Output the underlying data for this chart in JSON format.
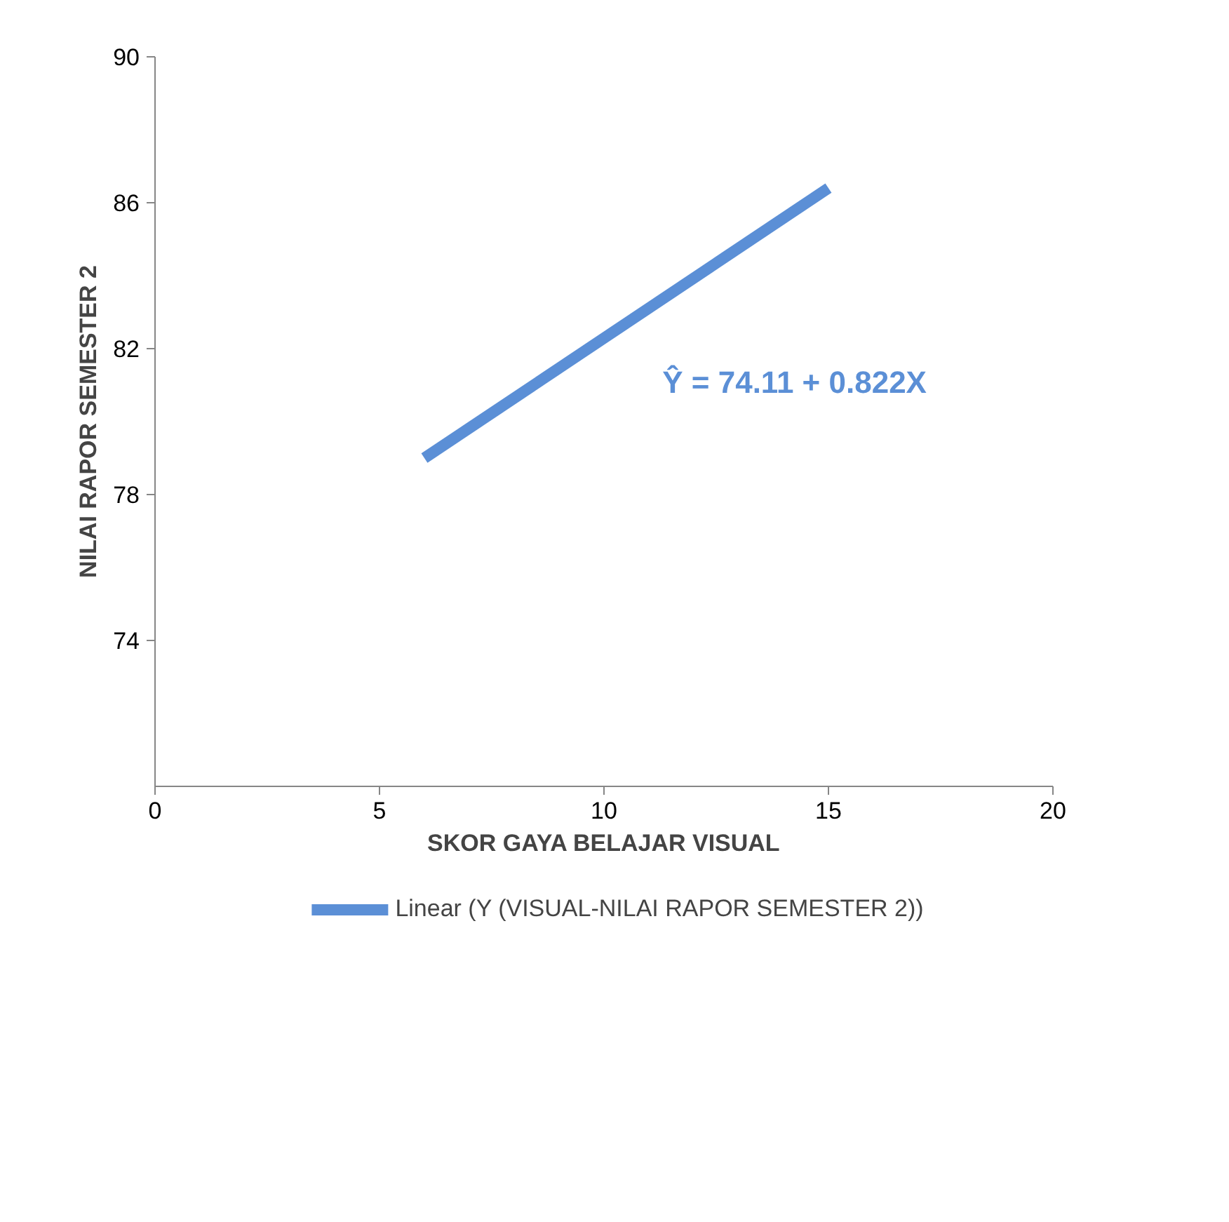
{
  "chart_data": {
    "type": "line",
    "xlabel": "SKOR GAYA BELAJAR VISUAL",
    "ylabel": "NILAI RAPOR SEMESTER 2",
    "series": [
      {
        "name": "Linear (Y (VISUAL-NILAI RAPOR SEMESTER 2))",
        "color": "#5b8fd6",
        "x": [
          6,
          15
        ],
        "values": [
          79.0,
          86.4
        ]
      }
    ],
    "xlim": [
      0,
      20
    ],
    "xticks": [
      0,
      5,
      10,
      15,
      20
    ],
    "ylim": [
      70,
      90
    ],
    "yticks": [
      74,
      78,
      82,
      86,
      90
    ],
    "annotations": [
      "Ŷ = 74.11 + 0.822X"
    ],
    "grid": false,
    "legend": "bottom",
    "marker": "none",
    "line_style": "solid"
  }
}
